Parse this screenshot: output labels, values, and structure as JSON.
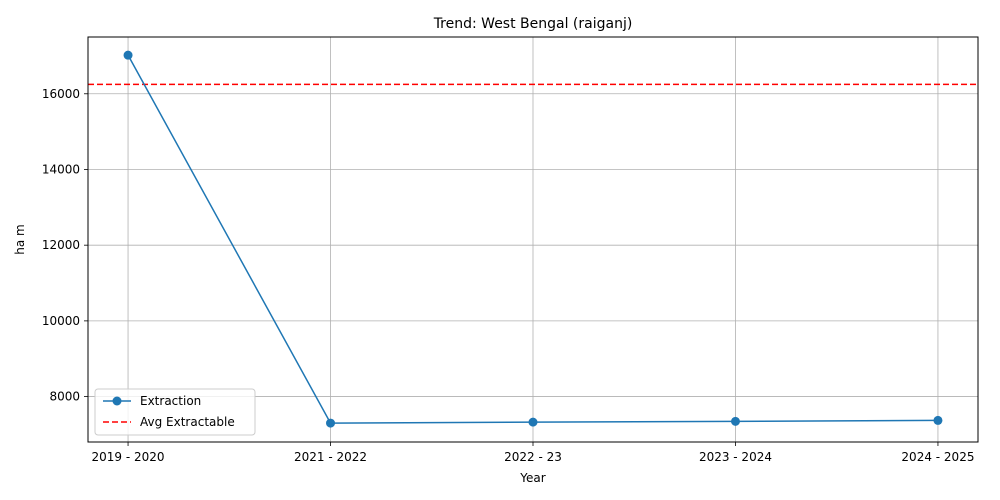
{
  "chart_data": {
    "type": "line",
    "title": "Trend: West Bengal (raiganj)",
    "xlabel": "Year",
    "ylabel": "ha m",
    "categories": [
      "2019 - 2020",
      "2021 - 2022",
      "2022 - 23",
      "2023 - 2024",
      "2024 - 2025"
    ],
    "ylim": [
      6800,
      17500
    ],
    "yticks": [
      8000,
      10000,
      12000,
      14000,
      16000
    ],
    "grid": true,
    "legend_position": "lower-left",
    "series": [
      {
        "name": "Extraction",
        "values": [
          17020,
          7300,
          7325,
          7345,
          7370
        ],
        "color": "#1f77b4",
        "style": "solid",
        "marker": "circle"
      }
    ],
    "reference_lines": [
      {
        "name": "Avg Extractable",
        "value": 16250,
        "color": "#ff0000",
        "style": "dashed"
      }
    ]
  }
}
